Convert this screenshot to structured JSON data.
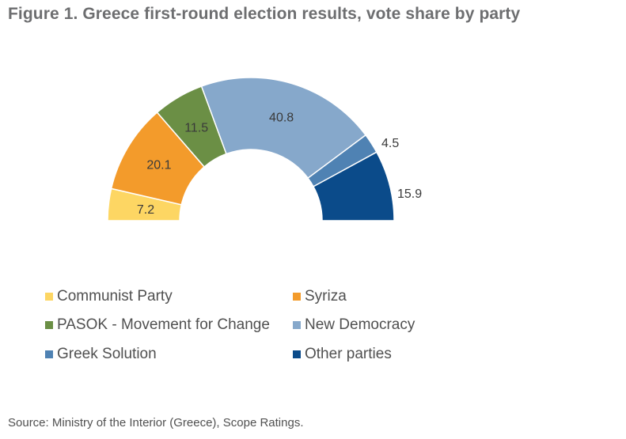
{
  "figure": {
    "title": "Figure 1. Greece first-round election results, vote share by party",
    "source": "Source: Ministry of the Interior (Greece), Scope Ratings."
  },
  "chart_data": {
    "type": "pie",
    "subtype": "half-donut",
    "unit": "%",
    "legend_placement": "bottom",
    "series": [
      {
        "name": "Communist Party",
        "value": 7.2,
        "label": "7.2",
        "color": "#fdd663"
      },
      {
        "name": "Syriza",
        "value": 20.1,
        "label": "20.1",
        "color": "#f39b2b"
      },
      {
        "name": "PASOK - Movement for Change",
        "value": 11.5,
        "label": "11.5",
        "color": "#6b8f45"
      },
      {
        "name": "New Democracy",
        "value": 40.8,
        "label": "40.8",
        "color": "#86a8cb"
      },
      {
        "name": "Greek Solution",
        "value": 4.5,
        "label": "4.5",
        "color": "#4f82b3"
      },
      {
        "name": "Other parties",
        "value": 15.9,
        "label": "15.9",
        "color": "#0b4b8a"
      }
    ]
  }
}
